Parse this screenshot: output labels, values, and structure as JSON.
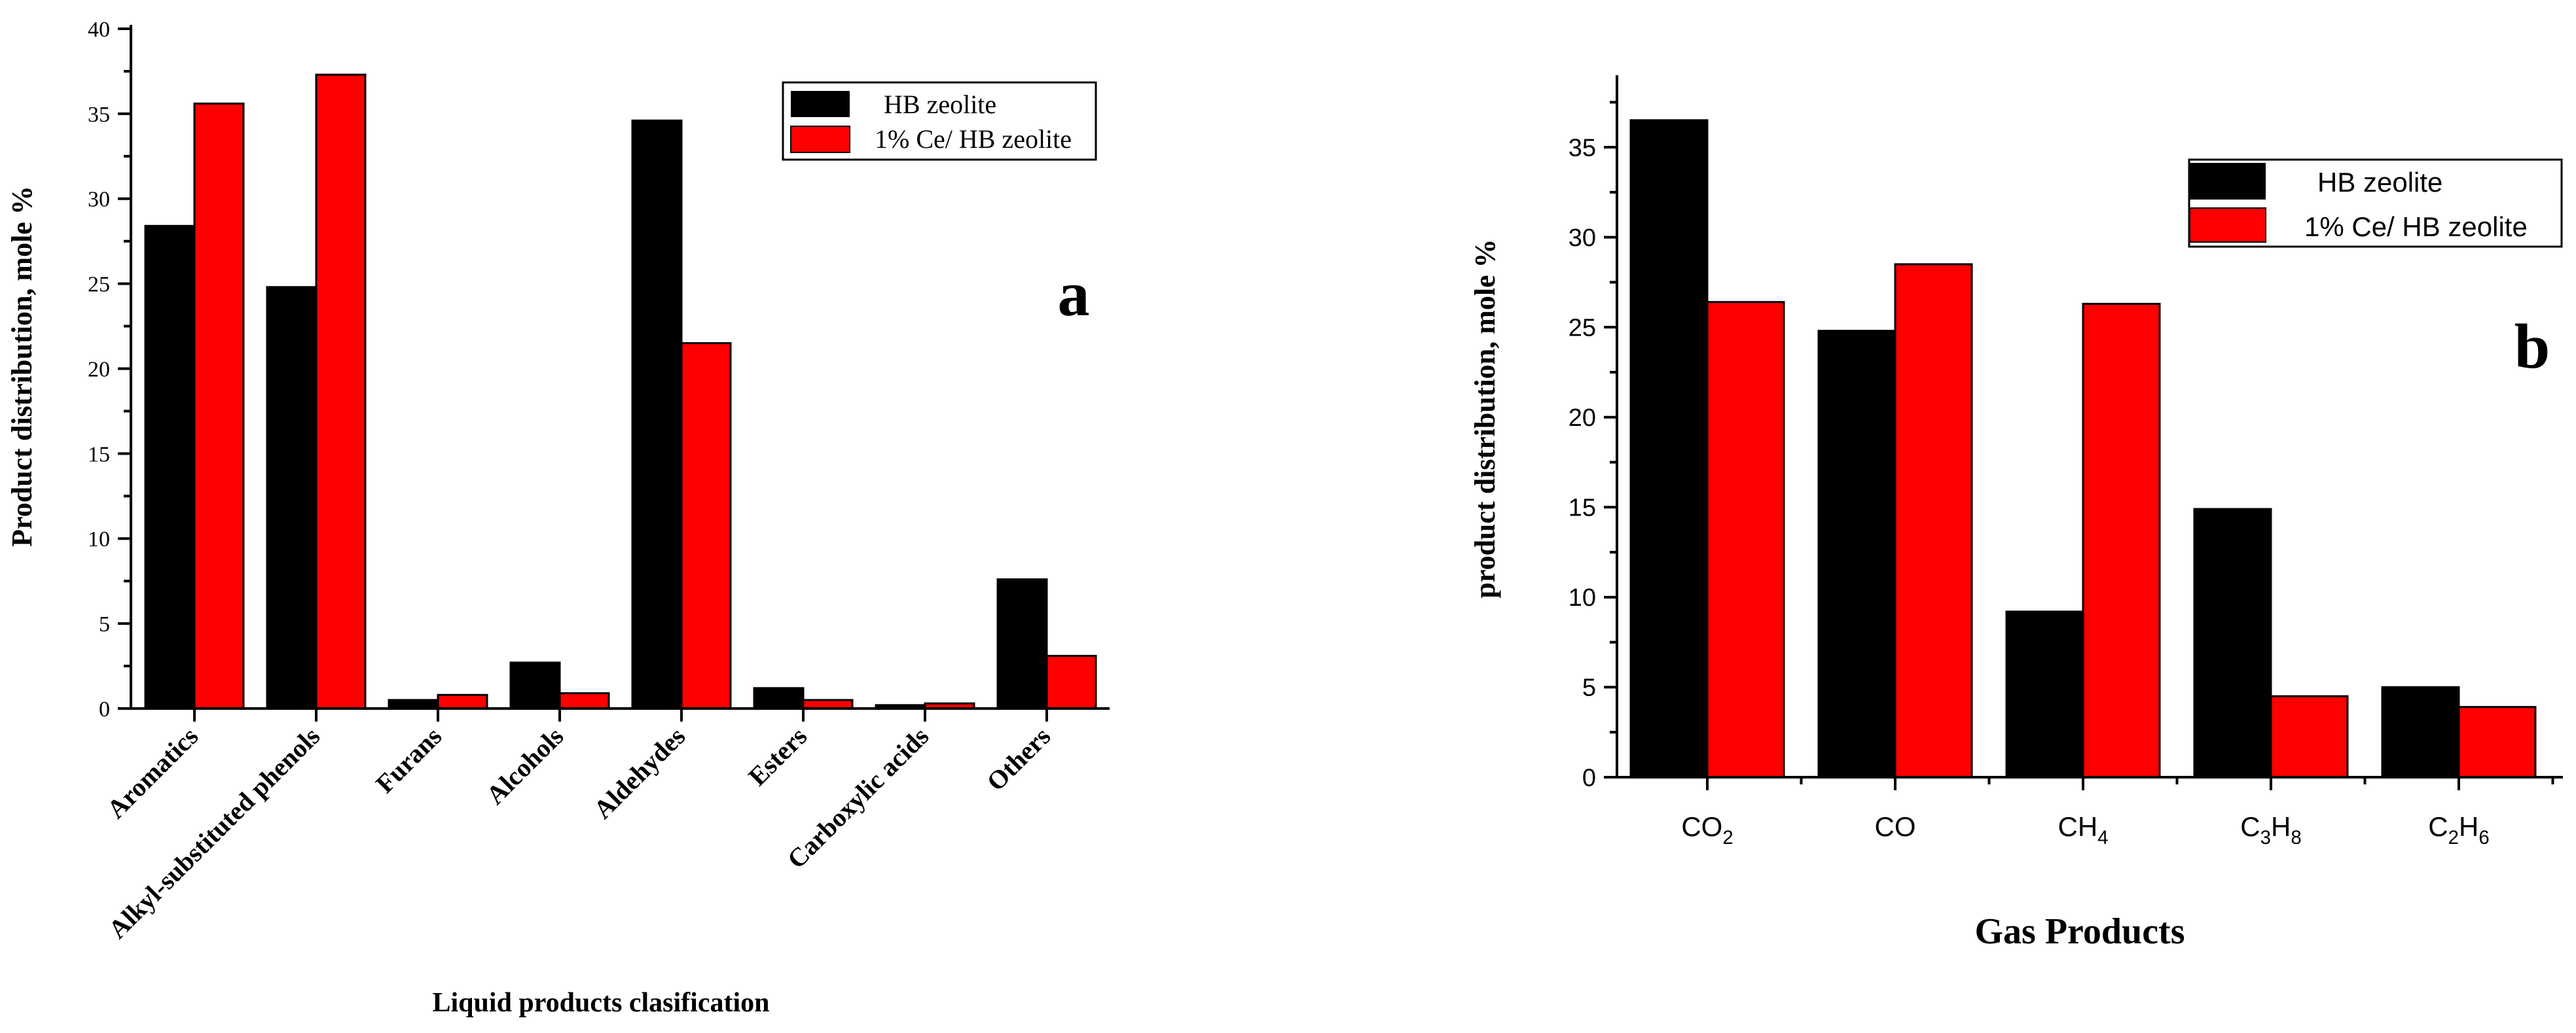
{
  "colors": {
    "hb": "#000000",
    "ce": "#ff0000",
    "axis": "#000000",
    "background": "#ffffff"
  },
  "chart_data": [
    {
      "type": "bar",
      "panel_label": "a",
      "title": "",
      "xlabel": "Liquid products clasification",
      "ylabel": "Product distribution, mole %",
      "categories": [
        "Aromatics",
        "Alkyl-substituted phenols",
        "Furans",
        "Alcohols",
        "Aldehydes",
        "Esters",
        "Carboxylic acids",
        "Others"
      ],
      "series": [
        {
          "name": "HB zeolite",
          "color": "#000000",
          "values": [
            28.4,
            24.8,
            0.5,
            2.7,
            34.6,
            1.2,
            0.2,
            7.6
          ]
        },
        {
          "name": "1% Ce/ HB zeolite",
          "color": "#ff0000",
          "values": [
            35.6,
            37.3,
            0.8,
            0.9,
            21.5,
            0.5,
            0.3,
            3.1
          ]
        }
      ],
      "ylim": [
        0,
        40
      ],
      "yticks": [
        "0",
        "5",
        "10",
        "15",
        "20",
        "25",
        "30",
        "35",
        "40"
      ],
      "legend_position": "top-right",
      "grid": false
    },
    {
      "type": "bar",
      "panel_label": "b",
      "title": "",
      "xlabel": "Gas Products",
      "ylabel": "product distribution, mole %",
      "categories": [
        "CO2",
        "CO",
        "CH4",
        "C3H8",
        "C2H6"
      ],
      "category_labels": [
        [
          {
            "t": "CO",
            "sub": false
          },
          {
            "t": "2",
            "sub": true
          }
        ],
        [
          {
            "t": "CO",
            "sub": false
          }
        ],
        [
          {
            "t": "CH",
            "sub": false
          },
          {
            "t": "4",
            "sub": true
          }
        ],
        [
          {
            "t": "C",
            "sub": false
          },
          {
            "t": "3",
            "sub": true
          },
          {
            "t": "H",
            "sub": false
          },
          {
            "t": "8",
            "sub": true
          }
        ],
        [
          {
            "t": "C",
            "sub": false
          },
          {
            "t": "2",
            "sub": true
          },
          {
            "t": "H",
            "sub": false
          },
          {
            "t": "6",
            "sub": true
          }
        ]
      ],
      "series": [
        {
          "name": "HB zeolite",
          "color": "#000000",
          "values": [
            36.5,
            24.8,
            9.2,
            14.9,
            5.0
          ]
        },
        {
          "name": "1% Ce/ HB zeolite",
          "color": "#ff0000",
          "values": [
            26.4,
            28.5,
            26.3,
            4.5,
            3.9
          ]
        }
      ],
      "ylim": [
        0,
        39
      ],
      "yticks": [
        "0",
        "5",
        "10",
        "15",
        "20",
        "25",
        "30",
        "35"
      ],
      "legend_position": "top-right",
      "grid": false
    }
  ]
}
